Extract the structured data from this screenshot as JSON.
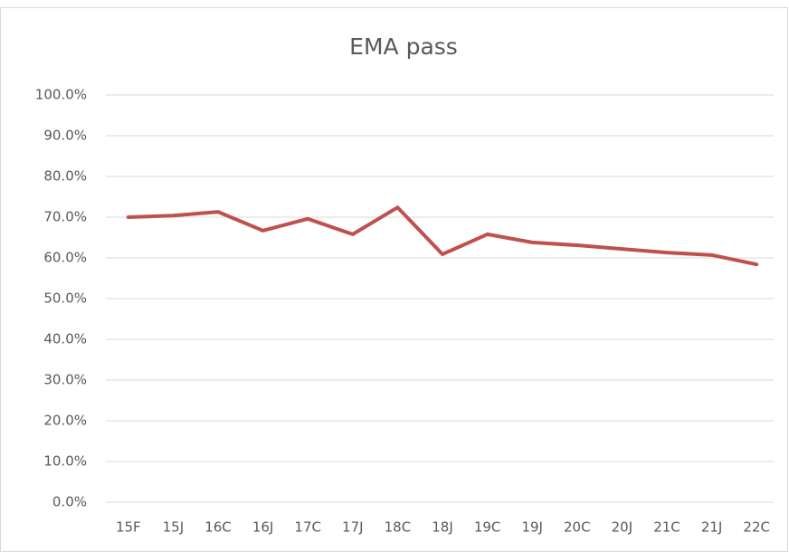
{
  "chart_data": {
    "type": "line",
    "title": "EMA pass",
    "categories": [
      "15F",
      "15J",
      "16C",
      "16J",
      "17C",
      "17J",
      "18C",
      "18J",
      "19C",
      "19J",
      "20C",
      "20J",
      "21C",
      "21J",
      "22C"
    ],
    "series": [
      {
        "name": "EMA pass",
        "color": "#c0504d",
        "values": [
          70.0,
          70.4,
          71.3,
          66.7,
          69.6,
          65.8,
          72.4,
          60.9,
          65.8,
          63.8,
          63.1,
          62.2,
          61.3,
          60.7,
          58.4
        ]
      }
    ],
    "ylim": [
      0,
      100
    ],
    "yticks": [
      {
        "value": 0,
        "label": "0.0%"
      },
      {
        "value": 10,
        "label": "10.0%"
      },
      {
        "value": 20,
        "label": "20.0%"
      },
      {
        "value": 30,
        "label": "30.0%"
      },
      {
        "value": 40,
        "label": "40.0%"
      },
      {
        "value": 50,
        "label": "50.0%"
      },
      {
        "value": 60,
        "label": "60.0%"
      },
      {
        "value": 70,
        "label": "70.0%"
      },
      {
        "value": 80,
        "label": "80.0%"
      },
      {
        "value": 90,
        "label": "90.0%"
      },
      {
        "value": 100,
        "label": "100.0%"
      }
    ],
    "grid": true
  }
}
